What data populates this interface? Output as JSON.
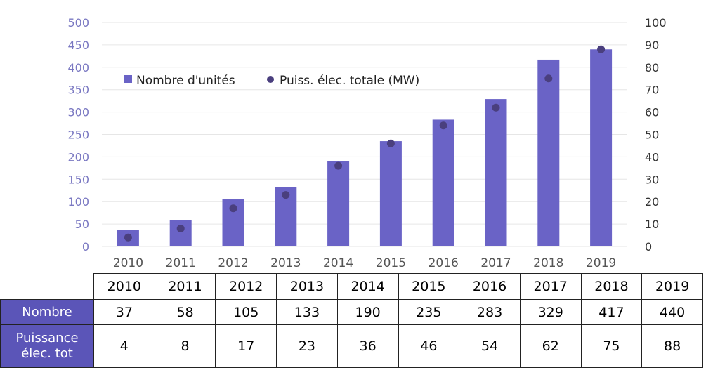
{
  "chart_data": {
    "type": "bar+scatter",
    "categories": [
      "2010",
      "2011",
      "2012",
      "2013",
      "2014",
      "2015",
      "2016",
      "2017",
      "2018",
      "2019"
    ],
    "series": [
      {
        "name": "Nombre d'unités",
        "type": "bar",
        "axis": "left",
        "values": [
          37,
          58,
          105,
          133,
          190,
          235,
          283,
          329,
          417,
          440
        ]
      },
      {
        "name": "Puiss. élec. totale (MW)",
        "type": "scatter",
        "axis": "right",
        "values": [
          4,
          8,
          17,
          23,
          36,
          46,
          54,
          62,
          75,
          88
        ]
      }
    ],
    "y_left": {
      "lim": [
        0,
        500
      ],
      "ticks": [
        "0",
        "50",
        "100",
        "150",
        "200",
        "250",
        "300",
        "350",
        "400",
        "450",
        "500"
      ]
    },
    "y_right": {
      "lim": [
        0,
        100
      ],
      "ticks": [
        "0",
        "10",
        "20",
        "30",
        "40",
        "50",
        "60",
        "70",
        "80",
        "90",
        "100"
      ]
    },
    "grid": true,
    "legend_position": "top-left",
    "colors": {
      "bar": "#6a63c6",
      "point": "#4a3f7e",
      "axis_text": "#7a78c2",
      "year_text": "#555555"
    }
  },
  "table": {
    "years": [
      "2010",
      "2011",
      "2012",
      "2013",
      "2014",
      "2015",
      "2016",
      "2017",
      "2018",
      "2019"
    ],
    "rows": [
      {
        "label_lines": [
          "Nombre"
        ],
        "values": [
          "37",
          "58",
          "105",
          "133",
          "190",
          "235",
          "283",
          "329",
          "417",
          "440"
        ]
      },
      {
        "label_lines": [
          "Puissance",
          "élec. tot"
        ],
        "values": [
          "4",
          "8",
          "17",
          "23",
          "36",
          "46",
          "54",
          "62",
          "75",
          "88"
        ]
      }
    ],
    "header_color": "#5b55b8"
  }
}
